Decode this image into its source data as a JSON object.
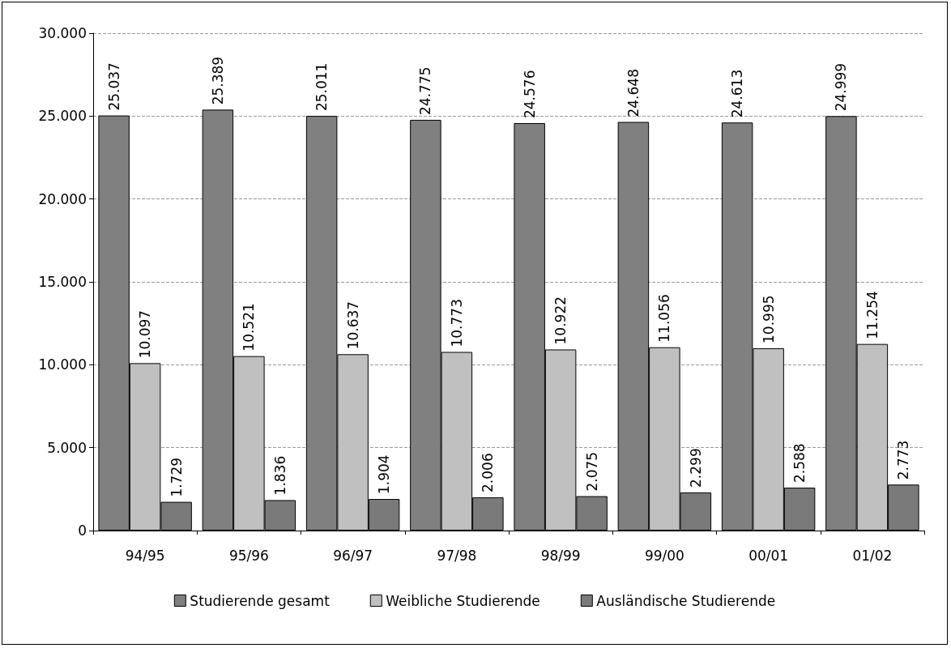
{
  "chart_data": {
    "type": "bar",
    "categories": [
      "94/95",
      "95/96",
      "96/97",
      "97/98",
      "98/99",
      "99/00",
      "00/01",
      "01/02"
    ],
    "series": [
      {
        "name": "Studierende gesamt",
        "color": "#808080",
        "values": [
          25037,
          25389,
          25011,
          24775,
          24576,
          24648,
          24613,
          24999
        ],
        "value_labels": [
          "25.037",
          "25.389",
          "25.011",
          "24.775",
          "24.576",
          "24.648",
          "24.613",
          "24.999"
        ]
      },
      {
        "name": "Weibliche Studierende",
        "color": "#c0c0c0",
        "values": [
          10097,
          10521,
          10637,
          10773,
          10922,
          11056,
          10995,
          11254
        ],
        "value_labels": [
          "10.097",
          "10.521",
          "10.637",
          "10.773",
          "10.922",
          "11.056",
          "10.995",
          "11.254"
        ]
      },
      {
        "name": "Ausländische Studierende",
        "color": "#7a7a7a",
        "values": [
          1729,
          1836,
          1904,
          2006,
          2075,
          2299,
          2588,
          2773
        ],
        "value_labels": [
          "1.729",
          "1.836",
          "1.904",
          "2.006",
          "2.075",
          "2.299",
          "2.588",
          "2.773"
        ]
      }
    ],
    "ylim": [
      0,
      30000
    ],
    "yticks": [
      {
        "value": 0,
        "label": "0"
      },
      {
        "value": 5000,
        "label": "5.000"
      },
      {
        "value": 10000,
        "label": "10.000"
      },
      {
        "value": 15000,
        "label": "15.000"
      },
      {
        "value": 20000,
        "label": "20.000"
      },
      {
        "value": 25000,
        "label": "25.000"
      },
      {
        "value": 30000,
        "label": "30.000"
      }
    ],
    "grid": "y",
    "legend": "bottom"
  }
}
